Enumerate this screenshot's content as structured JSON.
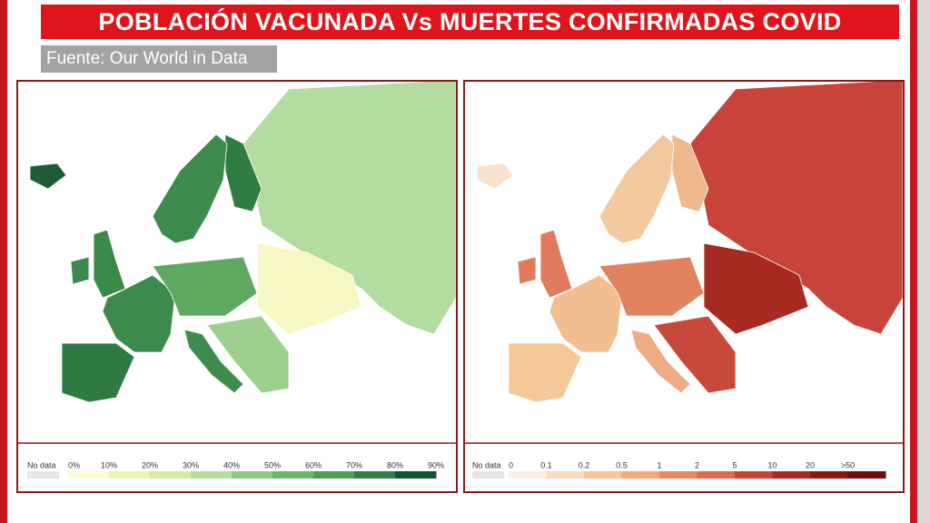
{
  "title": "POBLACIÓN VACUNADA Vs MUERTES CONFIRMADAS COVID",
  "source": "Fuente: Our World in Data",
  "legends": [
    {
      "no_data": "No data",
      "no_data_color": "#e6e6e6",
      "labels": [
        "0%",
        "10%",
        "20%",
        "30%",
        "40%",
        "50%",
        "60%",
        "70%",
        "80%",
        "90%"
      ],
      "colors": [
        "#fbfbd6",
        "#eef3b8",
        "#d4eaa5",
        "#b5dca0",
        "#8fca85",
        "#6db46d",
        "#4f9c58",
        "#357f45",
        "#145232"
      ]
    },
    {
      "no_data": "No data",
      "no_data_color": "#e6e6e6",
      "labels": [
        "0",
        "0.1",
        "0.2",
        "0.5",
        "1",
        "2",
        "5",
        "10",
        "20",
        ">50"
      ],
      "colors": [
        "#fdf1e6",
        "#f9dcc0",
        "#f4c49a",
        "#efa97c",
        "#e68862",
        "#dc6a4f",
        "#c8443a",
        "#a82a22",
        "#8a1a16",
        "#6b0f0f"
      ]
    }
  ]
}
